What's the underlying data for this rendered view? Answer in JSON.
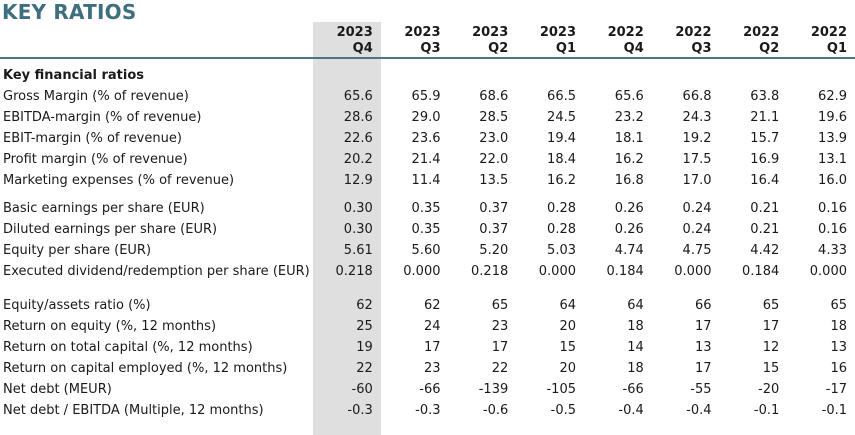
{
  "title": "KEY RATIOS",
  "colors": {
    "title_teal": "#3E6F7E",
    "rule_teal": "#4A7880",
    "highlight_gray": "#DFDFDF",
    "text_dark": "#1A1A1A"
  },
  "table": {
    "columns": [
      {
        "year": "2023",
        "quarter": "Q4",
        "highlighted": true
      },
      {
        "year": "2023",
        "quarter": "Q3",
        "highlighted": false
      },
      {
        "year": "2023",
        "quarter": "Q2",
        "highlighted": false
      },
      {
        "year": "2023",
        "quarter": "Q1",
        "highlighted": false
      },
      {
        "year": "2022",
        "quarter": "Q4",
        "highlighted": false
      },
      {
        "year": "2022",
        "quarter": "Q3",
        "highlighted": false
      },
      {
        "year": "2022",
        "quarter": "Q2",
        "highlighted": false
      },
      {
        "year": "2022",
        "quarter": "Q1",
        "highlighted": false
      }
    ],
    "rows": [
      {
        "label": "Key financial ratios",
        "bold": true,
        "group": 1,
        "values": [
          "",
          "",
          "",
          "",
          "",
          "",
          "",
          ""
        ]
      },
      {
        "label": "Gross Margin (% of revenue)",
        "bold": false,
        "group": 1,
        "values": [
          "65.6",
          "65.9",
          "68.6",
          "66.5",
          "65.6",
          "66.8",
          "63.8",
          "62.9"
        ]
      },
      {
        "label": "EBITDA-margin (% of revenue)",
        "bold": false,
        "group": 1,
        "values": [
          "28.6",
          "29.0",
          "28.5",
          "24.5",
          "23.2",
          "24.3",
          "21.1",
          "19.6"
        ]
      },
      {
        "label": "EBIT-margin (% of revenue)",
        "bold": false,
        "group": 1,
        "values": [
          "22.6",
          "23.6",
          "23.0",
          "19.4",
          "18.1",
          "19.2",
          "15.7",
          "13.9"
        ]
      },
      {
        "label": "Profit margin (% of revenue)",
        "bold": false,
        "group": 1,
        "values": [
          "20.2",
          "21.4",
          "22.0",
          "18.4",
          "16.2",
          "17.5",
          "16.9",
          "13.1"
        ]
      },
      {
        "label": "Marketing expenses (% of revenue)",
        "bold": false,
        "group": 1,
        "values": [
          "12.9",
          "11.4",
          "13.5",
          "16.2",
          "16.8",
          "17.0",
          "16.4",
          "16.0"
        ]
      },
      {
        "label": "Basic earnings per share (EUR)",
        "bold": false,
        "group": 2,
        "values": [
          "0.30",
          "0.35",
          "0.37",
          "0.28",
          "0.26",
          "0.24",
          "0.21",
          "0.16"
        ]
      },
      {
        "label": "Diluted earnings per share (EUR)",
        "bold": false,
        "group": 2,
        "values": [
          "0.30",
          "0.35",
          "0.37",
          "0.28",
          "0.26",
          "0.24",
          "0.21",
          "0.16"
        ]
      },
      {
        "label": "Equity per share (EUR)",
        "bold": false,
        "group": 2,
        "values": [
          "5.61",
          "5.60",
          "5.20",
          "5.03",
          "4.74",
          "4.75",
          "4.42",
          "4.33"
        ]
      },
      {
        "label": "Executed dividend/redemption per share (EUR)",
        "bold": false,
        "group": 2,
        "values": [
          "0.218",
          "0.000",
          "0.218",
          "0.000",
          "0.184",
          "0.000",
          "0.184",
          "0.000"
        ]
      },
      {
        "label": "Equity/assets ratio (%)",
        "bold": false,
        "group": 3,
        "values": [
          "62",
          "62",
          "65",
          "64",
          "64",
          "66",
          "65",
          "65"
        ]
      },
      {
        "label": "Return on equity (%, 12 months)",
        "bold": false,
        "group": 3,
        "values": [
          "25",
          "24",
          "23",
          "20",
          "18",
          "17",
          "17",
          "18"
        ]
      },
      {
        "label": "Return on total capital (%, 12 months)",
        "bold": false,
        "group": 3,
        "values": [
          "19",
          "17",
          "17",
          "15",
          "14",
          "13",
          "12",
          "13"
        ]
      },
      {
        "label": "Return on capital employed (%, 12 months)",
        "bold": false,
        "group": 3,
        "values": [
          "22",
          "23",
          "22",
          "20",
          "18",
          "17",
          "15",
          "16"
        ]
      },
      {
        "label": "Net debt (MEUR)",
        "bold": false,
        "group": 3,
        "values": [
          "-60",
          "-66",
          "-139",
          "-105",
          "-66",
          "-55",
          "-20",
          "-17"
        ]
      },
      {
        "label": "Net debt / EBITDA (Multiple, 12 months)",
        "bold": false,
        "group": 3,
        "values": [
          "-0.3",
          "-0.3",
          "-0.6",
          "-0.5",
          "-0.4",
          "-0.4",
          "-0.1",
          "-0.1"
        ]
      }
    ]
  }
}
